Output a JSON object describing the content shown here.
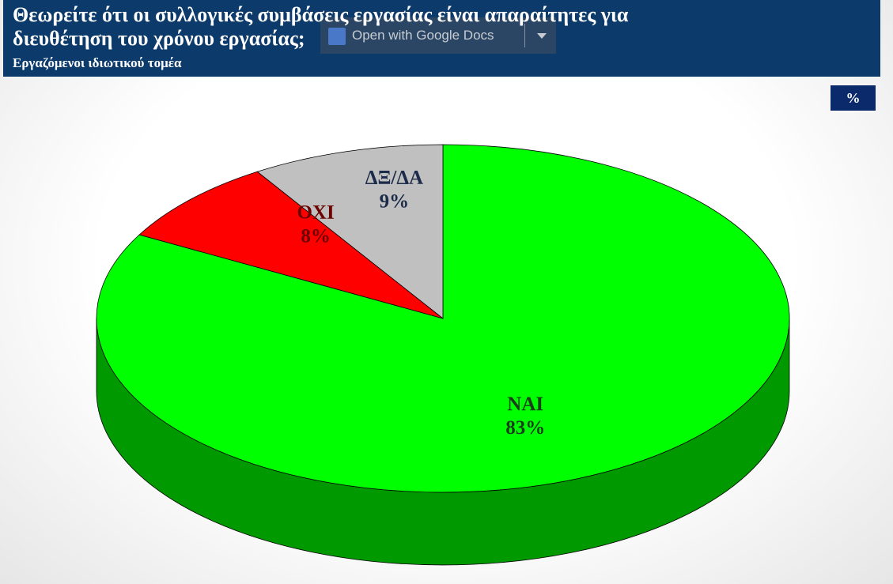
{
  "overlay": {
    "button": "Open with Google Docs"
  },
  "chart_data": {
    "type": "pie3d",
    "title": "Θεωρείτε ότι οι συλλογικές συμβάσεις εργασίας είναι απαραίτητες για διευθέτηση του χρόνου εργασίας;",
    "subtitle": "Εργαζόμενοι ιδιωτικού τομέα",
    "unit_badge": "%",
    "categories": [
      "ΝΑΙ",
      "ΟΧΙ",
      "ΔΞ/ΔΑ"
    ],
    "values": [
      83,
      8,
      9
    ],
    "value_labels": [
      "83%",
      "8%",
      "9%"
    ],
    "colors": [
      "#00ff00",
      "#ff0000",
      "#c0c0c0"
    ],
    "side_colors": [
      "#009a00",
      "#a00000",
      "#8a8a8a"
    ]
  }
}
